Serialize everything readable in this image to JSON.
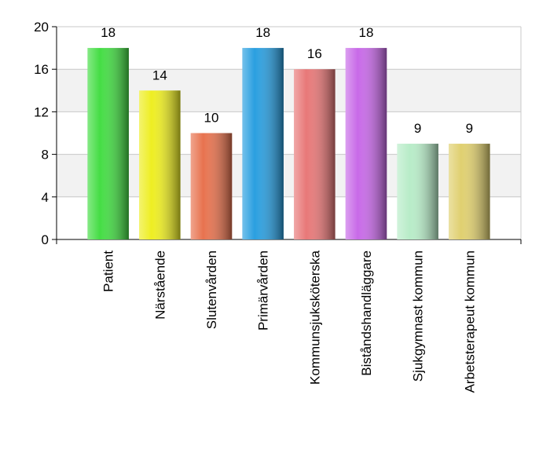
{
  "chart_data": {
    "type": "bar",
    "categories": [
      "Patient",
      "Närstående",
      "Slutenvården",
      "Primärvården",
      "Kommunsjuksköterska",
      "Biståndshandläggare",
      "Sjukgymnast kommun",
      "Arbetsterapeut kommun"
    ],
    "values": [
      18,
      14,
      10,
      18,
      16,
      18,
      9,
      9
    ],
    "colors": [
      "#44dd44",
      "#eeee22",
      "#e8734f",
      "#2a9fe0",
      "#e87878",
      "#c86ae8",
      "#b8ecc8",
      "#e0d070"
    ],
    "ylim": [
      0,
      20
    ],
    "yticks": [
      0,
      4,
      8,
      12,
      16,
      20
    ],
    "grid": true
  }
}
